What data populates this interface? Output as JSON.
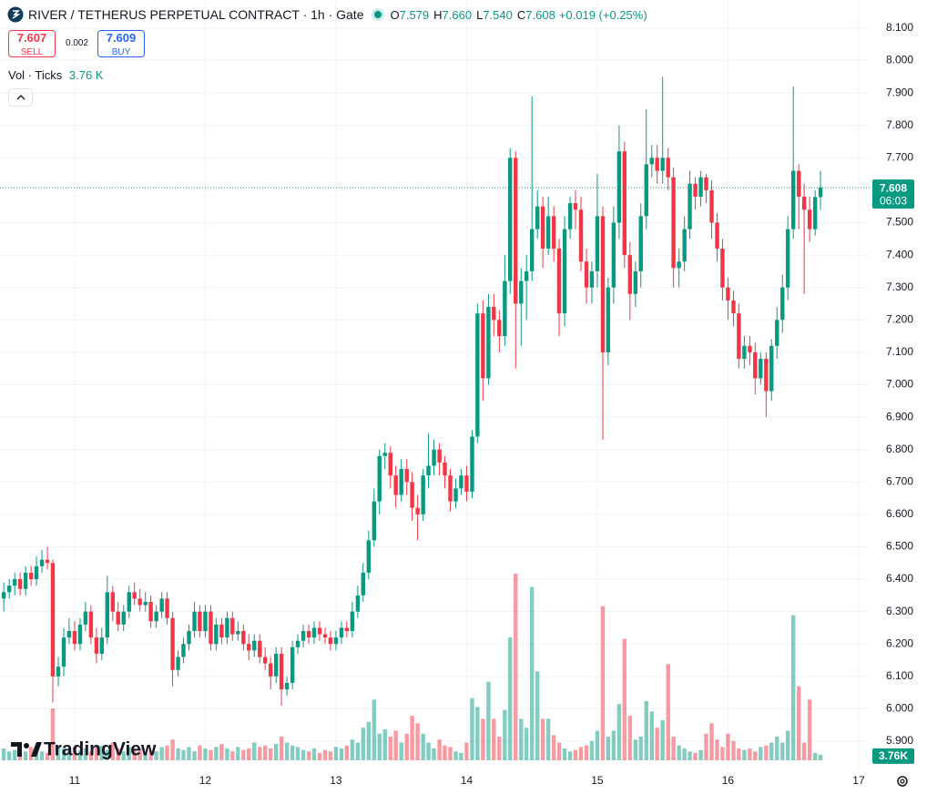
{
  "chart_data": {
    "type": "candlestick",
    "title": "RIVER / TETHERUS PERPETUAL CONTRACT · 1h · Gate",
    "ohlc_legend": [
      {
        "label": "O",
        "value": "7.579"
      },
      {
        "label": "H",
        "value": "7.660"
      },
      {
        "label": "L",
        "value": "7.540"
      },
      {
        "label": "C",
        "value": "7.608"
      }
    ],
    "change": "+0.019 (+0.25%)",
    "sell": {
      "price": "7.607",
      "label": "SELL"
    },
    "spread": "0.002",
    "buy": {
      "price": "7.609",
      "label": "BUY"
    },
    "volume_legend": {
      "label": "Vol · Ticks",
      "value": "3.76 K"
    },
    "last_price_label": "7.608",
    "countdown": "06:03",
    "last_volume_label": "3.76K",
    "brand": "TradingView",
    "up_color": "#089981",
    "down_color": "#f23645",
    "grid": true,
    "xlim": [
      10.429,
      17.084
    ],
    "xticks": [
      11,
      12,
      13,
      14,
      15,
      16,
      17
    ],
    "ylim": [
      5.813,
      8.187
    ],
    "yticks": [
      {
        "value": 5.9,
        "label": "5.900"
      },
      {
        "value": 6.0,
        "label": "6.000"
      },
      {
        "value": 6.1,
        "label": "6.100"
      },
      {
        "value": 6.2,
        "label": "6.200"
      },
      {
        "value": 6.3,
        "label": "6.300"
      },
      {
        "value": 6.4,
        "label": "6.400"
      },
      {
        "value": 6.5,
        "label": "6.500"
      },
      {
        "value": 6.6,
        "label": "6.600"
      },
      {
        "value": 6.7,
        "label": "6.700"
      },
      {
        "value": 6.8,
        "label": "6.800"
      },
      {
        "value": 6.9,
        "label": "6.900"
      },
      {
        "value": 7.0,
        "label": "7.000"
      },
      {
        "value": 7.1,
        "label": "7.100"
      },
      {
        "value": 7.2,
        "label": "7.200"
      },
      {
        "value": 7.3,
        "label": "7.300"
      },
      {
        "value": 7.4,
        "label": "7.400"
      },
      {
        "value": 7.5,
        "label": "7.500"
      },
      {
        "value": 7.6,
        "label": "7.600"
      },
      {
        "value": 7.7,
        "label": "7.700"
      },
      {
        "value": 7.8,
        "label": "7.800"
      },
      {
        "value": 7.9,
        "label": "7.900"
      },
      {
        "value": 8.0,
        "label": "8.000"
      },
      {
        "value": 8.1,
        "label": "8.100"
      }
    ],
    "x": [
      10.458,
      10.5,
      10.542,
      10.583,
      10.625,
      10.667,
      10.708,
      10.75,
      10.792,
      10.833,
      10.875,
      10.917,
      10.958,
      11,
      11.042,
      11.083,
      11.125,
      11.167,
      11.208,
      11.25,
      11.292,
      11.333,
      11.375,
      11.417,
      11.458,
      11.5,
      11.542,
      11.583,
      11.625,
      11.667,
      11.708,
      11.75,
      11.792,
      11.833,
      11.875,
      11.917,
      11.958,
      12,
      12.042,
      12.083,
      12.125,
      12.167,
      12.208,
      12.25,
      12.292,
      12.333,
      12.375,
      12.417,
      12.458,
      12.5,
      12.542,
      12.583,
      12.625,
      12.667,
      12.708,
      12.75,
      12.792,
      12.833,
      12.875,
      12.917,
      12.958,
      13,
      13.042,
      13.083,
      13.125,
      13.167,
      13.208,
      13.25,
      13.292,
      13.333,
      13.375,
      13.417,
      13.458,
      13.5,
      13.542,
      13.583,
      13.625,
      13.667,
      13.708,
      13.75,
      13.792,
      13.833,
      13.875,
      13.917,
      13.958,
      14,
      14.042,
      14.083,
      14.125,
      14.167,
      14.208,
      14.25,
      14.292,
      14.333,
      14.375,
      14.417,
      14.458,
      14.5,
      14.542,
      14.583,
      14.625,
      14.667,
      14.708,
      14.75,
      14.792,
      14.833,
      14.875,
      14.917,
      14.958,
      15,
      15.042,
      15.083,
      15.125,
      15.167,
      15.208,
      15.25,
      15.292,
      15.333,
      15.375,
      15.417,
      15.458,
      15.5,
      15.542,
      15.583,
      15.625,
      15.667,
      15.708,
      15.75,
      15.792,
      15.833,
      15.875,
      15.917,
      15.958,
      16,
      16.042,
      16.083,
      16.125,
      16.167,
      16.208,
      16.25,
      16.292,
      16.333,
      16.375,
      16.417,
      16.458,
      16.5,
      16.542,
      16.583,
      16.625,
      16.667,
      16.708
    ],
    "open": [
      6.34,
      6.36,
      6.38,
      6.4,
      6.37,
      6.42,
      6.4,
      6.44,
      6.46,
      6.45,
      6.1,
      6.13,
      6.22,
      6.24,
      6.2,
      6.26,
      6.3,
      6.22,
      6.17,
      6.22,
      6.36,
      6.3,
      6.26,
      6.3,
      6.36,
      6.34,
      6.32,
      6.33,
      6.27,
      6.3,
      6.34,
      6.28,
      6.12,
      6.16,
      6.2,
      6.24,
      6.3,
      6.24,
      6.3,
      6.2,
      6.26,
      6.22,
      6.28,
      6.23,
      6.24,
      6.2,
      6.18,
      6.21,
      6.16,
      6.14,
      6.1,
      6.17,
      6.06,
      6.08,
      6.19,
      6.21,
      6.24,
      6.22,
      6.25,
      6.23,
      6.22,
      6.2,
      6.22,
      6.25,
      6.24,
      6.3,
      6.35,
      6.42,
      6.52,
      6.64,
      6.78,
      6.79,
      6.72,
      6.66,
      6.74,
      6.7,
      6.62,
      6.6,
      6.72,
      6.75,
      6.8,
      6.76,
      6.72,
      6.64,
      6.68,
      6.72,
      6.67,
      6.84,
      7.22,
      7.02,
      7.24,
      7.2,
      7.15,
      7.32,
      7.7,
      7.25,
      7.32,
      7.35,
      7.48,
      7.55,
      7.42,
      7.52,
      7.42,
      7.22,
      7.48,
      7.56,
      7.54,
      7.38,
      7.3,
      7.35,
      7.52,
      7.1,
      7.3,
      7.5,
      7.72,
      7.4,
      7.28,
      7.35,
      7.52,
      7.68,
      7.7,
      7.66,
      7.7,
      7.64,
      7.36,
      7.38,
      7.48,
      7.62,
      7.58,
      7.64,
      7.6,
      7.5,
      7.42,
      7.3,
      7.26,
      7.22,
      7.08,
      7.12,
      7.1,
      7.02,
      7.08,
      6.98,
      7.12,
      7.2,
      7.3,
      7.48,
      7.66,
      7.58,
      7.54,
      7.48,
      7.579
    ],
    "high": [
      6.39,
      6.4,
      6.42,
      6.42,
      6.44,
      6.44,
      6.47,
      6.49,
      6.5,
      6.46,
      6.16,
      6.25,
      6.28,
      6.27,
      6.28,
      6.33,
      6.32,
      6.25,
      6.25,
      6.41,
      6.38,
      6.33,
      6.32,
      6.38,
      6.39,
      6.37,
      6.36,
      6.35,
      6.32,
      6.36,
      6.36,
      6.3,
      6.18,
      6.22,
      6.26,
      6.33,
      6.32,
      6.32,
      6.32,
      6.28,
      6.28,
      6.3,
      6.3,
      6.27,
      6.26,
      6.23,
      6.23,
      6.23,
      6.19,
      6.16,
      6.19,
      6.19,
      6.1,
      6.21,
      6.23,
      6.26,
      6.26,
      6.27,
      6.27,
      6.25,
      6.24,
      6.24,
      6.27,
      6.27,
      6.33,
      6.38,
      6.45,
      6.55,
      6.68,
      6.8,
      6.82,
      6.81,
      6.75,
      6.77,
      6.77,
      6.73,
      6.66,
      6.74,
      6.85,
      6.83,
      6.82,
      6.78,
      6.74,
      6.71,
      6.74,
      6.75,
      6.86,
      7.25,
      7.26,
      7.28,
      7.28,
      7.23,
      7.4,
      7.73,
      7.72,
      7.36,
      7.4,
      7.89,
      7.6,
      7.58,
      7.58,
      7.55,
      7.45,
      7.52,
      7.58,
      7.6,
      7.58,
      7.42,
      7.38,
      7.65,
      7.55,
      7.33,
      7.55,
      7.8,
      7.75,
      7.44,
      7.38,
      7.56,
      7.85,
      7.74,
      7.74,
      7.95,
      7.73,
      7.67,
      7.42,
      7.52,
      7.66,
      7.64,
      7.66,
      7.65,
      7.63,
      7.53,
      7.45,
      7.33,
      7.29,
      7.25,
      7.15,
      7.15,
      7.13,
      7.1,
      7.1,
      7.14,
      7.24,
      7.34,
      7.52,
      7.92,
      7.68,
      7.62,
      7.58,
      7.6,
      7.66
    ],
    "low": [
      6.3,
      6.34,
      6.35,
      6.35,
      6.35,
      6.38,
      6.38,
      6.42,
      6.43,
      6.02,
      6.07,
      6.1,
      6.2,
      6.18,
      6.18,
      6.24,
      6.2,
      6.14,
      6.15,
      6.2,
      6.27,
      6.24,
      6.24,
      6.28,
      6.32,
      6.3,
      6.3,
      6.25,
      6.25,
      6.28,
      6.26,
      6.07,
      6.1,
      6.14,
      6.18,
      6.22,
      6.22,
      6.22,
      6.18,
      6.18,
      6.2,
      6.2,
      6.21,
      6.21,
      6.18,
      6.15,
      6.16,
      6.14,
      6.12,
      6.06,
      6.08,
      6.01,
      6.04,
      6.06,
      6.17,
      6.19,
      6.2,
      6.2,
      6.21,
      6.2,
      6.18,
      6.18,
      6.2,
      6.22,
      6.22,
      6.28,
      6.33,
      6.4,
      6.5,
      6.6,
      6.74,
      6.68,
      6.62,
      6.64,
      6.66,
      6.58,
      6.52,
      6.58,
      6.68,
      6.72,
      6.72,
      6.68,
      6.61,
      6.62,
      6.66,
      6.64,
      6.65,
      6.82,
      6.95,
      7.0,
      7.15,
      7.1,
      7.12,
      7.28,
      7.05,
      7.12,
      7.2,
      7.32,
      7.45,
      7.36,
      7.4,
      7.38,
      7.15,
      7.18,
      7.45,
      7.48,
      7.35,
      7.25,
      7.25,
      7.3,
      6.83,
      7.06,
      7.25,
      7.45,
      7.36,
      7.2,
      7.24,
      7.3,
      7.48,
      7.64,
      7.62,
      7.62,
      7.6,
      7.3,
      7.3,
      7.35,
      7.45,
      7.54,
      7.55,
      7.56,
      7.45,
      7.38,
      7.26,
      7.2,
      7.18,
      7.05,
      7.05,
      7.06,
      6.97,
      7.0,
      6.9,
      6.95,
      7.08,
      7.16,
      7.26,
      7.45,
      7.48,
      7.28,
      7.44,
      7.46,
      7.54
    ],
    "close": [
      6.36,
      6.38,
      6.4,
      6.37,
      6.42,
      6.4,
      6.44,
      6.46,
      6.45,
      6.1,
      6.13,
      6.22,
      6.24,
      6.2,
      6.26,
      6.3,
      6.22,
      6.17,
      6.22,
      6.36,
      6.3,
      6.26,
      6.3,
      6.36,
      6.34,
      6.32,
      6.33,
      6.27,
      6.3,
      6.34,
      6.28,
      6.12,
      6.16,
      6.2,
      6.24,
      6.3,
      6.24,
      6.3,
      6.2,
      6.26,
      6.22,
      6.28,
      6.23,
      6.24,
      6.2,
      6.18,
      6.21,
      6.16,
      6.14,
      6.1,
      6.17,
      6.06,
      6.08,
      6.19,
      6.21,
      6.24,
      6.22,
      6.25,
      6.23,
      6.22,
      6.2,
      6.22,
      6.25,
      6.24,
      6.3,
      6.35,
      6.42,
      6.52,
      6.64,
      6.78,
      6.79,
      6.72,
      6.66,
      6.74,
      6.7,
      6.62,
      6.6,
      6.72,
      6.75,
      6.8,
      6.76,
      6.72,
      6.64,
      6.68,
      6.72,
      6.67,
      6.84,
      7.22,
      7.02,
      7.24,
      7.2,
      7.15,
      7.32,
      7.7,
      7.25,
      7.32,
      7.35,
      7.48,
      7.55,
      7.42,
      7.52,
      7.42,
      7.22,
      7.48,
      7.56,
      7.54,
      7.38,
      7.3,
      7.35,
      7.52,
      7.1,
      7.3,
      7.5,
      7.72,
      7.4,
      7.28,
      7.35,
      7.52,
      7.68,
      7.7,
      7.66,
      7.7,
      7.64,
      7.36,
      7.38,
      7.48,
      7.62,
      7.58,
      7.64,
      7.6,
      7.5,
      7.42,
      7.3,
      7.26,
      7.22,
      7.08,
      7.12,
      7.1,
      7.02,
      7.08,
      6.98,
      7.12,
      7.2,
      7.3,
      7.48,
      7.66,
      7.58,
      7.54,
      7.48,
      7.579,
      7.608
    ],
    "volume": [
      8,
      6,
      7,
      5,
      6,
      9,
      7,
      6,
      5,
      35,
      10,
      8,
      6,
      9,
      7,
      8,
      6,
      9,
      10,
      7,
      12,
      8,
      6,
      9,
      7,
      8,
      5,
      7,
      6,
      9,
      10,
      14,
      8,
      7,
      9,
      6,
      10,
      8,
      7,
      9,
      11,
      8,
      6,
      9,
      7,
      8,
      12,
      9,
      10,
      8,
      11,
      16,
      12,
      10,
      9,
      7,
      6,
      8,
      5,
      7,
      6,
      9,
      8,
      10,
      14,
      12,
      22,
      26,
      41,
      18,
      21,
      16,
      20,
      12,
      18,
      30,
      25,
      18,
      12,
      8,
      14,
      10,
      9,
      6,
      5,
      12,
      42,
      36,
      28,
      53,
      28,
      16,
      34,
      83,
      126,
      28,
      22,
      117,
      60,
      28,
      28,
      17,
      12,
      8,
      6,
      7,
      9,
      10,
      13,
      20,
      104,
      16,
      20,
      38,
      82,
      30,
      14,
      16,
      40,
      33,
      22,
      27,
      65,
      16,
      10,
      8,
      6,
      5,
      7,
      18,
      25,
      14,
      9,
      18,
      13,
      8,
      7,
      8,
      6,
      9,
      10,
      12,
      16,
      12,
      20,
      98,
      50,
      12,
      41,
      5,
      3.76
    ]
  }
}
